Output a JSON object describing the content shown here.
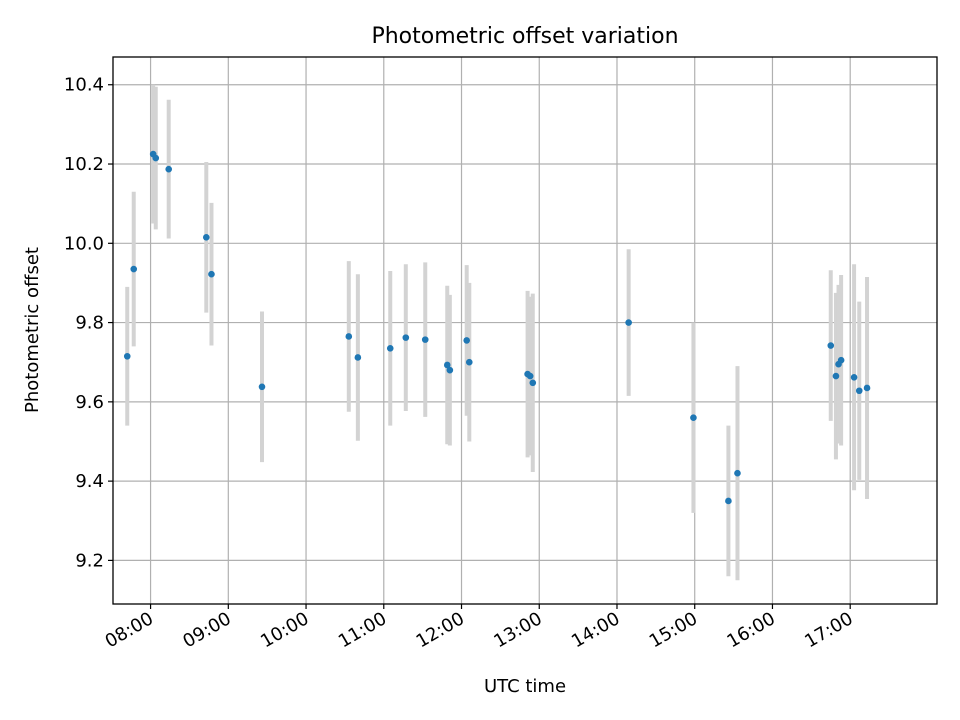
{
  "chart_data": {
    "type": "scatter",
    "title": "Photometric offset variation",
    "xlabel": "UTC time",
    "ylabel": "Photometric offset",
    "x_unit": "hour",
    "xlim": [
      "07:31",
      "18:07"
    ],
    "ylim": [
      9.09,
      10.47
    ],
    "x_ticks": [
      "08:00",
      "09:00",
      "10:00",
      "11:00",
      "12:00",
      "13:00",
      "14:00",
      "15:00",
      "16:00",
      "17:00"
    ],
    "y_ticks": [
      9.2,
      9.4,
      9.6,
      9.8,
      10.0,
      10.2,
      10.4
    ],
    "y_tick_labels": [
      "9.2",
      "9.4",
      "9.6",
      "9.8",
      "10.0",
      "10.2",
      "10.4"
    ],
    "grid": true,
    "colors": {
      "point": "#1f77b4",
      "errorbar": "#d3d3d3",
      "grid": "#b0b0b0"
    },
    "points": [
      {
        "x": "07:42",
        "y": 9.715,
        "err": 0.175
      },
      {
        "x": "07:47",
        "y": 9.935,
        "err": 0.195
      },
      {
        "x": "08:02",
        "y": 10.225,
        "err": 0.175
      },
      {
        "x": "08:04",
        "y": 10.215,
        "err": 0.18
      },
      {
        "x": "08:14",
        "y": 10.187,
        "err": 0.175
      },
      {
        "x": "08:43",
        "y": 10.015,
        "err": 0.19
      },
      {
        "x": "08:47",
        "y": 9.922,
        "err": 0.18
      },
      {
        "x": "09:26",
        "y": 9.638,
        "err": 0.19
      },
      {
        "x": "10:33",
        "y": 9.765,
        "err": 0.19
      },
      {
        "x": "10:40",
        "y": 9.712,
        "err": 0.21
      },
      {
        "x": "11:05",
        "y": 9.735,
        "err": 0.195
      },
      {
        "x": "11:17",
        "y": 9.762,
        "err": 0.185
      },
      {
        "x": "11:32",
        "y": 9.757,
        "err": 0.195
      },
      {
        "x": "11:49",
        "y": 9.693,
        "err": 0.2
      },
      {
        "x": "11:51",
        "y": 9.68,
        "err": 0.19
      },
      {
        "x": "12:04",
        "y": 9.755,
        "err": 0.19
      },
      {
        "x": "12:06",
        "y": 9.7,
        "err": 0.2
      },
      {
        "x": "12:51",
        "y": 9.67,
        "err": 0.21
      },
      {
        "x": "12:53",
        "y": 9.665,
        "err": 0.2
      },
      {
        "x": "12:55",
        "y": 9.648,
        "err": 0.225
      },
      {
        "x": "14:09",
        "y": 9.8,
        "err": 0.185
      },
      {
        "x": "14:59",
        "y": 9.56,
        "err": 0.24
      },
      {
        "x": "15:26",
        "y": 9.35,
        "err": 0.19
      },
      {
        "x": "15:33",
        "y": 9.42,
        "err": 0.27
      },
      {
        "x": "16:45",
        "y": 9.742,
        "err": 0.19
      },
      {
        "x": "16:49",
        "y": 9.665,
        "err": 0.21
      },
      {
        "x": "16:51",
        "y": 9.695,
        "err": 0.2
      },
      {
        "x": "16:53",
        "y": 9.705,
        "err": 0.215
      },
      {
        "x": "17:03",
        "y": 9.662,
        "err": 0.285
      },
      {
        "x": "17:07",
        "y": 9.628,
        "err": 0.225
      },
      {
        "x": "17:13",
        "y": 9.635,
        "err": 0.28
      }
    ]
  }
}
